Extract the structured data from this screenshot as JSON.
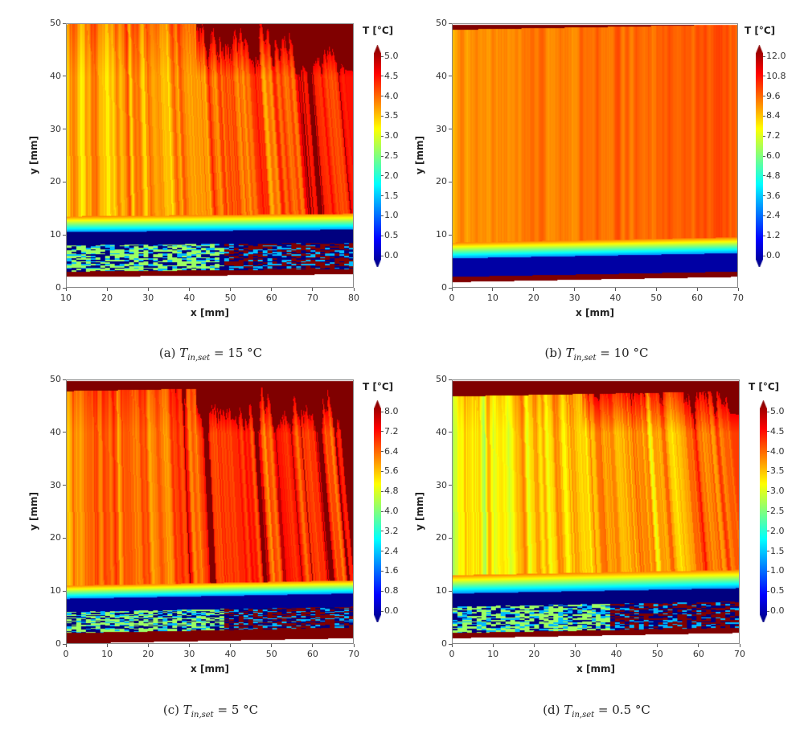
{
  "chart_data": [
    {
      "type": "heatmap",
      "id": "a",
      "caption": {
        "label": "(a)",
        "symbol": "T",
        "subscript": "in,set",
        "value": "= 15 °C"
      },
      "xlabel": "x [mm]",
      "ylabel": "y [mm]",
      "xlim": [
        10,
        80
      ],
      "ylim": [
        0,
        50
      ],
      "xticks": [
        "10",
        "20",
        "30",
        "40",
        "50",
        "60",
        "70",
        "80"
      ],
      "yticks": [
        "0",
        "10",
        "20",
        "30",
        "40",
        "50"
      ],
      "colorbar": {
        "title": "T [°C]",
        "colormap": "jet",
        "range": [
          0,
          5
        ],
        "ticks": [
          "0.0",
          "0.5",
          "1.0",
          "1.5",
          "2.0",
          "2.5",
          "3.0",
          "3.5",
          "4.0",
          "4.5",
          "5.0"
        ]
      },
      "bands": [
        {
          "y": [
            2,
            3
          ],
          "T": 5.0
        },
        {
          "y": [
            3,
            8
          ],
          "T": 0.8,
          "pattern": "patchy"
        },
        {
          "y": [
            8,
            10.5
          ],
          "T": 0.0
        },
        {
          "y": [
            10.5,
            13.5
          ],
          "T": 2.5,
          "pattern": "gradient"
        },
        {
          "y": [
            13.5,
            50
          ],
          "T": 4.3,
          "pattern": "streaks"
        }
      ]
    },
    {
      "type": "heatmap",
      "id": "b",
      "caption": {
        "label": "(b)",
        "symbol": "T",
        "subscript": "in,set",
        "value": "= 10 °C"
      },
      "xlabel": "x [mm]",
      "ylabel": "y [mm]",
      "xlim": [
        0,
        70
      ],
      "ylim": [
        0,
        50
      ],
      "xticks": [
        "0",
        "10",
        "20",
        "30",
        "40",
        "50",
        "60",
        "70"
      ],
      "yticks": [
        "0",
        "10",
        "20",
        "30",
        "40",
        "50"
      ],
      "colorbar": {
        "title": "T [°C]",
        "colormap": "jet",
        "range": [
          0,
          12
        ],
        "ticks": [
          "0.0",
          "1.2",
          "2.4",
          "3.6",
          "4.8",
          "6.0",
          "7.2",
          "8.4",
          "9.6",
          "10.8",
          "12.0"
        ]
      },
      "bands": [
        {
          "y": [
            1,
            2
          ],
          "T": 12.0
        },
        {
          "y": [
            2,
            5.5
          ],
          "T": 0.5
        },
        {
          "y": [
            5.5,
            8.5
          ],
          "T": 6.0,
          "pattern": "gradient"
        },
        {
          "y": [
            8.5,
            49
          ],
          "T": 10.4,
          "pattern": "smooth"
        },
        {
          "y": [
            49,
            50
          ],
          "T": 12.0
        }
      ]
    },
    {
      "type": "heatmap",
      "id": "c",
      "caption": {
        "label": "(c)",
        "symbol": "T",
        "subscript": "in,set",
        "value": "= 5 °C"
      },
      "xlabel": "x [mm]",
      "ylabel": "y [mm]",
      "xlim": [
        0,
        70
      ],
      "ylim": [
        0,
        50
      ],
      "xticks": [
        "0",
        "10",
        "20",
        "30",
        "40",
        "50",
        "60",
        "70"
      ],
      "yticks": [
        "0",
        "10",
        "20",
        "30",
        "40",
        "50"
      ],
      "colorbar": {
        "title": "T [°C]",
        "colormap": "jet",
        "range": [
          0,
          8
        ],
        "ticks": [
          "0.0",
          "0.8",
          "1.6",
          "2.4",
          "3.2",
          "4.0",
          "4.8",
          "5.6",
          "6.4",
          "7.2",
          "8.0"
        ]
      },
      "bands": [
        {
          "y": [
            0,
            2
          ],
          "T": 8.0
        },
        {
          "y": [
            2,
            6
          ],
          "T": 4.0,
          "pattern": "patchy"
        },
        {
          "y": [
            6,
            8.5
          ],
          "T": 0.2
        },
        {
          "y": [
            8.5,
            11
          ],
          "T": 4.5,
          "pattern": "gradient"
        },
        {
          "y": [
            11,
            48
          ],
          "T": 7.2,
          "pattern": "streaks"
        },
        {
          "y": [
            48,
            50
          ],
          "T": 8.0
        }
      ]
    },
    {
      "type": "heatmap",
      "id": "d",
      "caption": {
        "label": "(d)",
        "symbol": "T",
        "subscript": "in,set",
        "value": "= 0.5 °C"
      },
      "xlabel": "x [mm]",
      "ylabel": "y [mm]",
      "xlim": [
        0,
        70
      ],
      "ylim": [
        0,
        50
      ],
      "xticks": [
        "0",
        "10",
        "20",
        "30",
        "40",
        "50",
        "60",
        "70"
      ],
      "yticks": [
        "0",
        "10",
        "20",
        "30",
        "40",
        "50"
      ],
      "colorbar": {
        "title": "T [°C]",
        "colormap": "jet",
        "range": [
          0,
          5
        ],
        "ticks": [
          "0.0",
          "0.5",
          "1.0",
          "1.5",
          "2.0",
          "2.5",
          "3.0",
          "3.5",
          "4.0",
          "4.5",
          "5.0"
        ]
      },
      "bands": [
        {
          "y": [
            1,
            2
          ],
          "T": 5.0
        },
        {
          "y": [
            2,
            7
          ],
          "T": 0.8,
          "pattern": "patchy"
        },
        {
          "y": [
            7,
            9.5
          ],
          "T": 0.0
        },
        {
          "y": [
            9.5,
            13
          ],
          "T": 2.5,
          "pattern": "gradient"
        },
        {
          "y": [
            13,
            47
          ],
          "T": 3.9,
          "pattern": "streaks"
        },
        {
          "y": [
            47,
            50
          ],
          "T": 5.0
        }
      ]
    }
  ]
}
